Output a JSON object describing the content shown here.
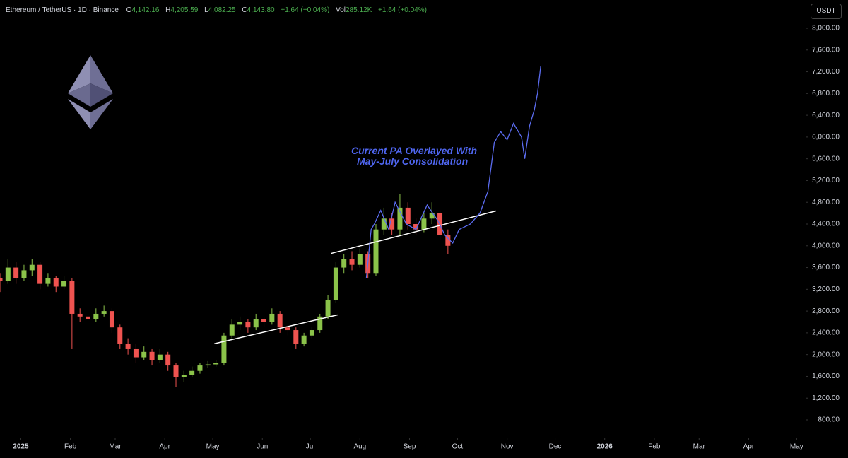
{
  "chart_data": {
    "type": "candlestick",
    "header": {
      "symbol": "Ethereum / TetherUS · 1D · Binance",
      "open_label": "O",
      "open": "4,142.16",
      "high_label": "H",
      "high": "4,205.59",
      "low_label": "L",
      "low": "4,082.25",
      "close_label": "C",
      "close": "4,143.80",
      "change": "+1.64 (+0.04%)",
      "volume_label": "Vol",
      "volume": "285.12K",
      "volume_change": "+1.64 (+0.04%)"
    },
    "unit": "USDT",
    "annotation": [
      "Current PA Overlayed With",
      "May-July Consolidation"
    ],
    "up_color": "#8bc34a",
    "down_color": "#ef5350",
    "x": [
      -13,
      -8,
      -3,
      2,
      7,
      12,
      17,
      22,
      27,
      32,
      37,
      42,
      47,
      52,
      57,
      62,
      67,
      72,
      77,
      82,
      87,
      92,
      97,
      102,
      107,
      112,
      117,
      122,
      127,
      132,
      137,
      142,
      147,
      152,
      157,
      162,
      167,
      172,
      177,
      182,
      187,
      192,
      197,
      202,
      207,
      212,
      217,
      222,
      227,
      232,
      237,
      242,
      247,
      252,
      257,
      262,
      267
    ],
    "open": [
      3400,
      3350,
      3600,
      3400,
      3550,
      3650,
      3300,
      3400,
      3250,
      3350,
      2750,
      2700,
      2650,
      2750,
      2800,
      2500,
      2200,
      2100,
      1950,
      2050,
      1900,
      2000,
      1800,
      1580,
      1620,
      1700,
      1800,
      1820,
      1850,
      2350,
      2550,
      2600,
      2500,
      2650,
      2600,
      2750,
      2500,
      2450,
      2200,
      2350,
      2450,
      2700,
      3000,
      3600,
      3750,
      3650,
      3850,
      3500,
      4300,
      4500,
      4300,
      4700,
      4400,
      4300,
      4500,
      4600,
      4200
    ],
    "high": [
      3500,
      3750,
      3700,
      3650,
      3750,
      3700,
      3500,
      3450,
      3450,
      3400,
      2850,
      2800,
      2850,
      2900,
      2850,
      2550,
      2300,
      2200,
      2150,
      2100,
      2100,
      2050,
      1850,
      1700,
      1780,
      1850,
      1880,
      1900,
      2400,
      2650,
      2700,
      2650,
      2750,
      2700,
      2850,
      2800,
      2550,
      2500,
      2400,
      2500,
      2750,
      3100,
      3700,
      3850,
      3900,
      3950,
      3900,
      4400,
      4700,
      4600,
      4950,
      4800,
      4500,
      4600,
      4800,
      4650,
      4300
    ],
    "low": [
      3150,
      3300,
      3300,
      3350,
      3450,
      3200,
      3250,
      3150,
      3200,
      2100,
      2600,
      2550,
      2600,
      2700,
      2400,
      2100,
      2000,
      1850,
      1900,
      1800,
      1850,
      1700,
      1400,
      1500,
      1580,
      1650,
      1750,
      1780,
      1800,
      2300,
      2450,
      2400,
      2450,
      2500,
      2550,
      2400,
      2350,
      2100,
      2150,
      2300,
      2400,
      2650,
      2950,
      3500,
      3550,
      3600,
      3400,
      3450,
      4200,
      4200,
      4200,
      4300,
      4200,
      4250,
      4400,
      4100,
      3850
    ],
    "close": [
      3350,
      3600,
      3400,
      3550,
      3650,
      3300,
      3400,
      3250,
      3350,
      2750,
      2700,
      2650,
      2750,
      2800,
      2500,
      2200,
      2100,
      1950,
      2050,
      1900,
      2000,
      1800,
      1580,
      1620,
      1700,
      1800,
      1820,
      1850,
      2350,
      2550,
      2600,
      2500,
      2650,
      2600,
      2750,
      2500,
      2450,
      2200,
      2350,
      2450,
      2700,
      3000,
      3600,
      3750,
      3650,
      3850,
      3500,
      4300,
      4500,
      4300,
      4700,
      4400,
      4300,
      4500,
      4600,
      4200,
      4000
    ],
    "overlay": {
      "color": "#5b6cf0",
      "x": [
        216,
        219,
        221,
        225,
        230,
        234,
        241,
        247,
        254,
        261,
        265,
        270,
        274,
        281,
        287,
        292,
        296,
        300,
        304,
        308,
        313,
        315,
        318,
        321,
        323,
        325
      ],
      "values": [
        3400,
        4300,
        4400,
        4650,
        4300,
        4800,
        4400,
        4300,
        4750,
        4450,
        4200,
        4050,
        4300,
        4400,
        4600,
        5000,
        5900,
        6100,
        5950,
        6250,
        6000,
        5600,
        6200,
        6500,
        6800,
        7300
      ]
    },
    "trendlines": [
      {
        "color": "#ffffff",
        "x": [
          121,
          198
        ],
        "values": [
          2200,
          2730
        ]
      },
      {
        "color": "#ffffff",
        "x": [
          194,
          297
        ],
        "values": [
          3860,
          4640
        ]
      }
    ],
    "xlim": [
      -13,
      495
    ],
    "xticks": [
      {
        "value": 0,
        "label": "2025"
      },
      {
        "value": 31,
        "label": "Feb"
      },
      {
        "value": 59,
        "label": "Mar"
      },
      {
        "value": 90,
        "label": "Apr"
      },
      {
        "value": 120,
        "label": "May"
      },
      {
        "value": 151,
        "label": "Jun"
      },
      {
        "value": 181,
        "label": "Jul"
      },
      {
        "value": 212,
        "label": "Aug"
      },
      {
        "value": 243,
        "label": "Sep"
      },
      {
        "value": 273,
        "label": "Oct"
      },
      {
        "value": 304,
        "label": "Nov"
      },
      {
        "value": 334,
        "label": "Dec"
      },
      {
        "value": 365,
        "label": "2026"
      },
      {
        "value": 396,
        "label": "Feb"
      },
      {
        "value": 424,
        "label": "Mar"
      },
      {
        "value": 455,
        "label": "Apr"
      },
      {
        "value": 485,
        "label": "May"
      }
    ],
    "ylim": [
      800,
      8000
    ],
    "yticks": [
      {
        "value": 800,
        "label": "800.00"
      },
      {
        "value": 1200,
        "label": "1,200.00"
      },
      {
        "value": 1600,
        "label": "1,600.00"
      },
      {
        "value": 2000,
        "label": "2,000.00"
      },
      {
        "value": 2400,
        "label": "2,400.00"
      },
      {
        "value": 2800,
        "label": "2,800.00"
      },
      {
        "value": 3200,
        "label": "3,200.00"
      },
      {
        "value": 3600,
        "label": "3,600.00"
      },
      {
        "value": 4000,
        "label": "4,000.00"
      },
      {
        "value": 4400,
        "label": "4,400.00"
      },
      {
        "value": 4800,
        "label": "4,800.00"
      },
      {
        "value": 5200,
        "label": "5,200.00"
      },
      {
        "value": 5600,
        "label": "5,600.00"
      },
      {
        "value": 6000,
        "label": "6,000.00"
      },
      {
        "value": 6400,
        "label": "6,400.00"
      },
      {
        "value": 6800,
        "label": "6,800.00"
      },
      {
        "value": 7200,
        "label": "7,200.00"
      },
      {
        "value": 7600,
        "label": "7,600.00"
      },
      {
        "value": 8000,
        "label": "8,000.00"
      }
    ]
  }
}
